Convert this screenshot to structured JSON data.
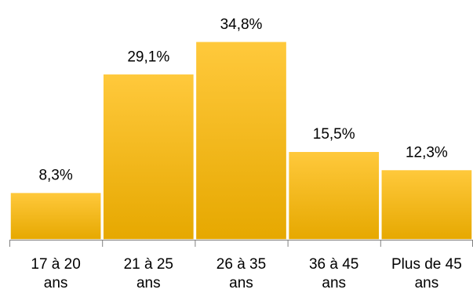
{
  "chart_data": {
    "type": "bar",
    "categories": [
      [
        "17 à 20",
        "ans"
      ],
      [
        "21 à 25",
        "ans"
      ],
      [
        "26 à 35",
        "ans"
      ],
      [
        "36 à 45",
        "ans"
      ],
      [
        "Plus de 45",
        "ans"
      ]
    ],
    "values": [
      8.3,
      29.1,
      34.8,
      15.5,
      12.3
    ],
    "value_labels": [
      "8,3%",
      "29,1%",
      "34,8%",
      "15,5%",
      "12,3%"
    ],
    "ylim": [
      0,
      40
    ],
    "grid": false,
    "legend": "none",
    "colors": {
      "bar_top": "#FFC93C",
      "bar_bottom": "#E6A800",
      "bar_edge": "#FFFFFF",
      "axis": "#808080"
    }
  }
}
